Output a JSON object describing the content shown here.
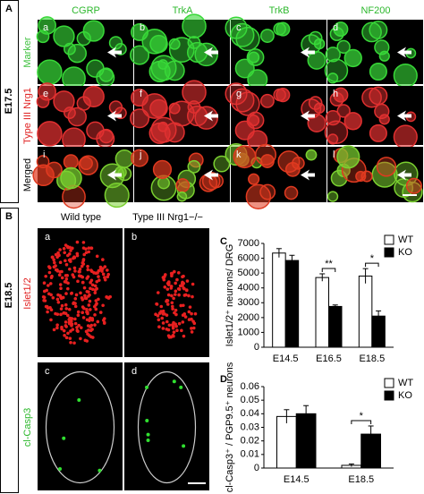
{
  "figure": {
    "panel_labels": [
      "A",
      "B",
      "C",
      "D"
    ],
    "a": {
      "stage": "E17.5",
      "columns": [
        "CGRP",
        "TrkA",
        "TrkB",
        "NF200"
      ],
      "rows": [
        "Marker",
        "Type III Nrg1",
        "Merged"
      ],
      "sublabels": [
        "a",
        "b",
        "c",
        "d",
        "e",
        "f",
        "g",
        "h",
        "i",
        "j",
        "k",
        "l"
      ]
    },
    "b": {
      "stage": "E18.5",
      "columns": [
        "Wild type",
        "Type III Nrg1−/−"
      ],
      "rows": [
        "Islet1/2",
        "cl-Casp3"
      ],
      "sublabels": [
        "a",
        "b",
        "c",
        "d"
      ]
    }
  },
  "chart_data": [
    {
      "type": "bar",
      "ylabel": "Islet1/2⁺ neurons/ DRG",
      "categories": [
        "E14.5",
        "E16.5",
        "E18.5"
      ],
      "series": [
        {
          "name": "WT",
          "color": "#ffffff",
          "values": [
            6350,
            4700,
            4800
          ],
          "errors": [
            300,
            250,
            500
          ]
        },
        {
          "name": "KO",
          "color": "#000000",
          "values": [
            5850,
            2750,
            2100
          ],
          "errors": [
            350,
            100,
            350
          ]
        }
      ],
      "significance": [
        null,
        "**",
        "*"
      ],
      "ylim": [
        0,
        7000
      ],
      "yticks": [
        0,
        1000,
        2000,
        3000,
        4000,
        5000,
        6000,
        7000
      ],
      "legend": "upper right"
    },
    {
      "type": "bar",
      "ylabel": "cl-Casp3⁺ / PGP9.5⁺ neurons",
      "categories": [
        "E14.5",
        "E18.5"
      ],
      "series": [
        {
          "name": "WT",
          "color": "#ffffff",
          "values": [
            0.038,
            0.002
          ],
          "errors": [
            0.005,
            0.001
          ]
        },
        {
          "name": "KO",
          "color": "#000000",
          "values": [
            0.04,
            0.025
          ],
          "errors": [
            0.006,
            0.006
          ]
        }
      ],
      "significance": [
        null,
        "*"
      ],
      "ylim": [
        0,
        0.06
      ],
      "yticks": [
        0,
        0.01,
        0.02,
        0.03,
        0.04,
        0.05,
        0.06
      ],
      "legend": "upper right"
    }
  ]
}
